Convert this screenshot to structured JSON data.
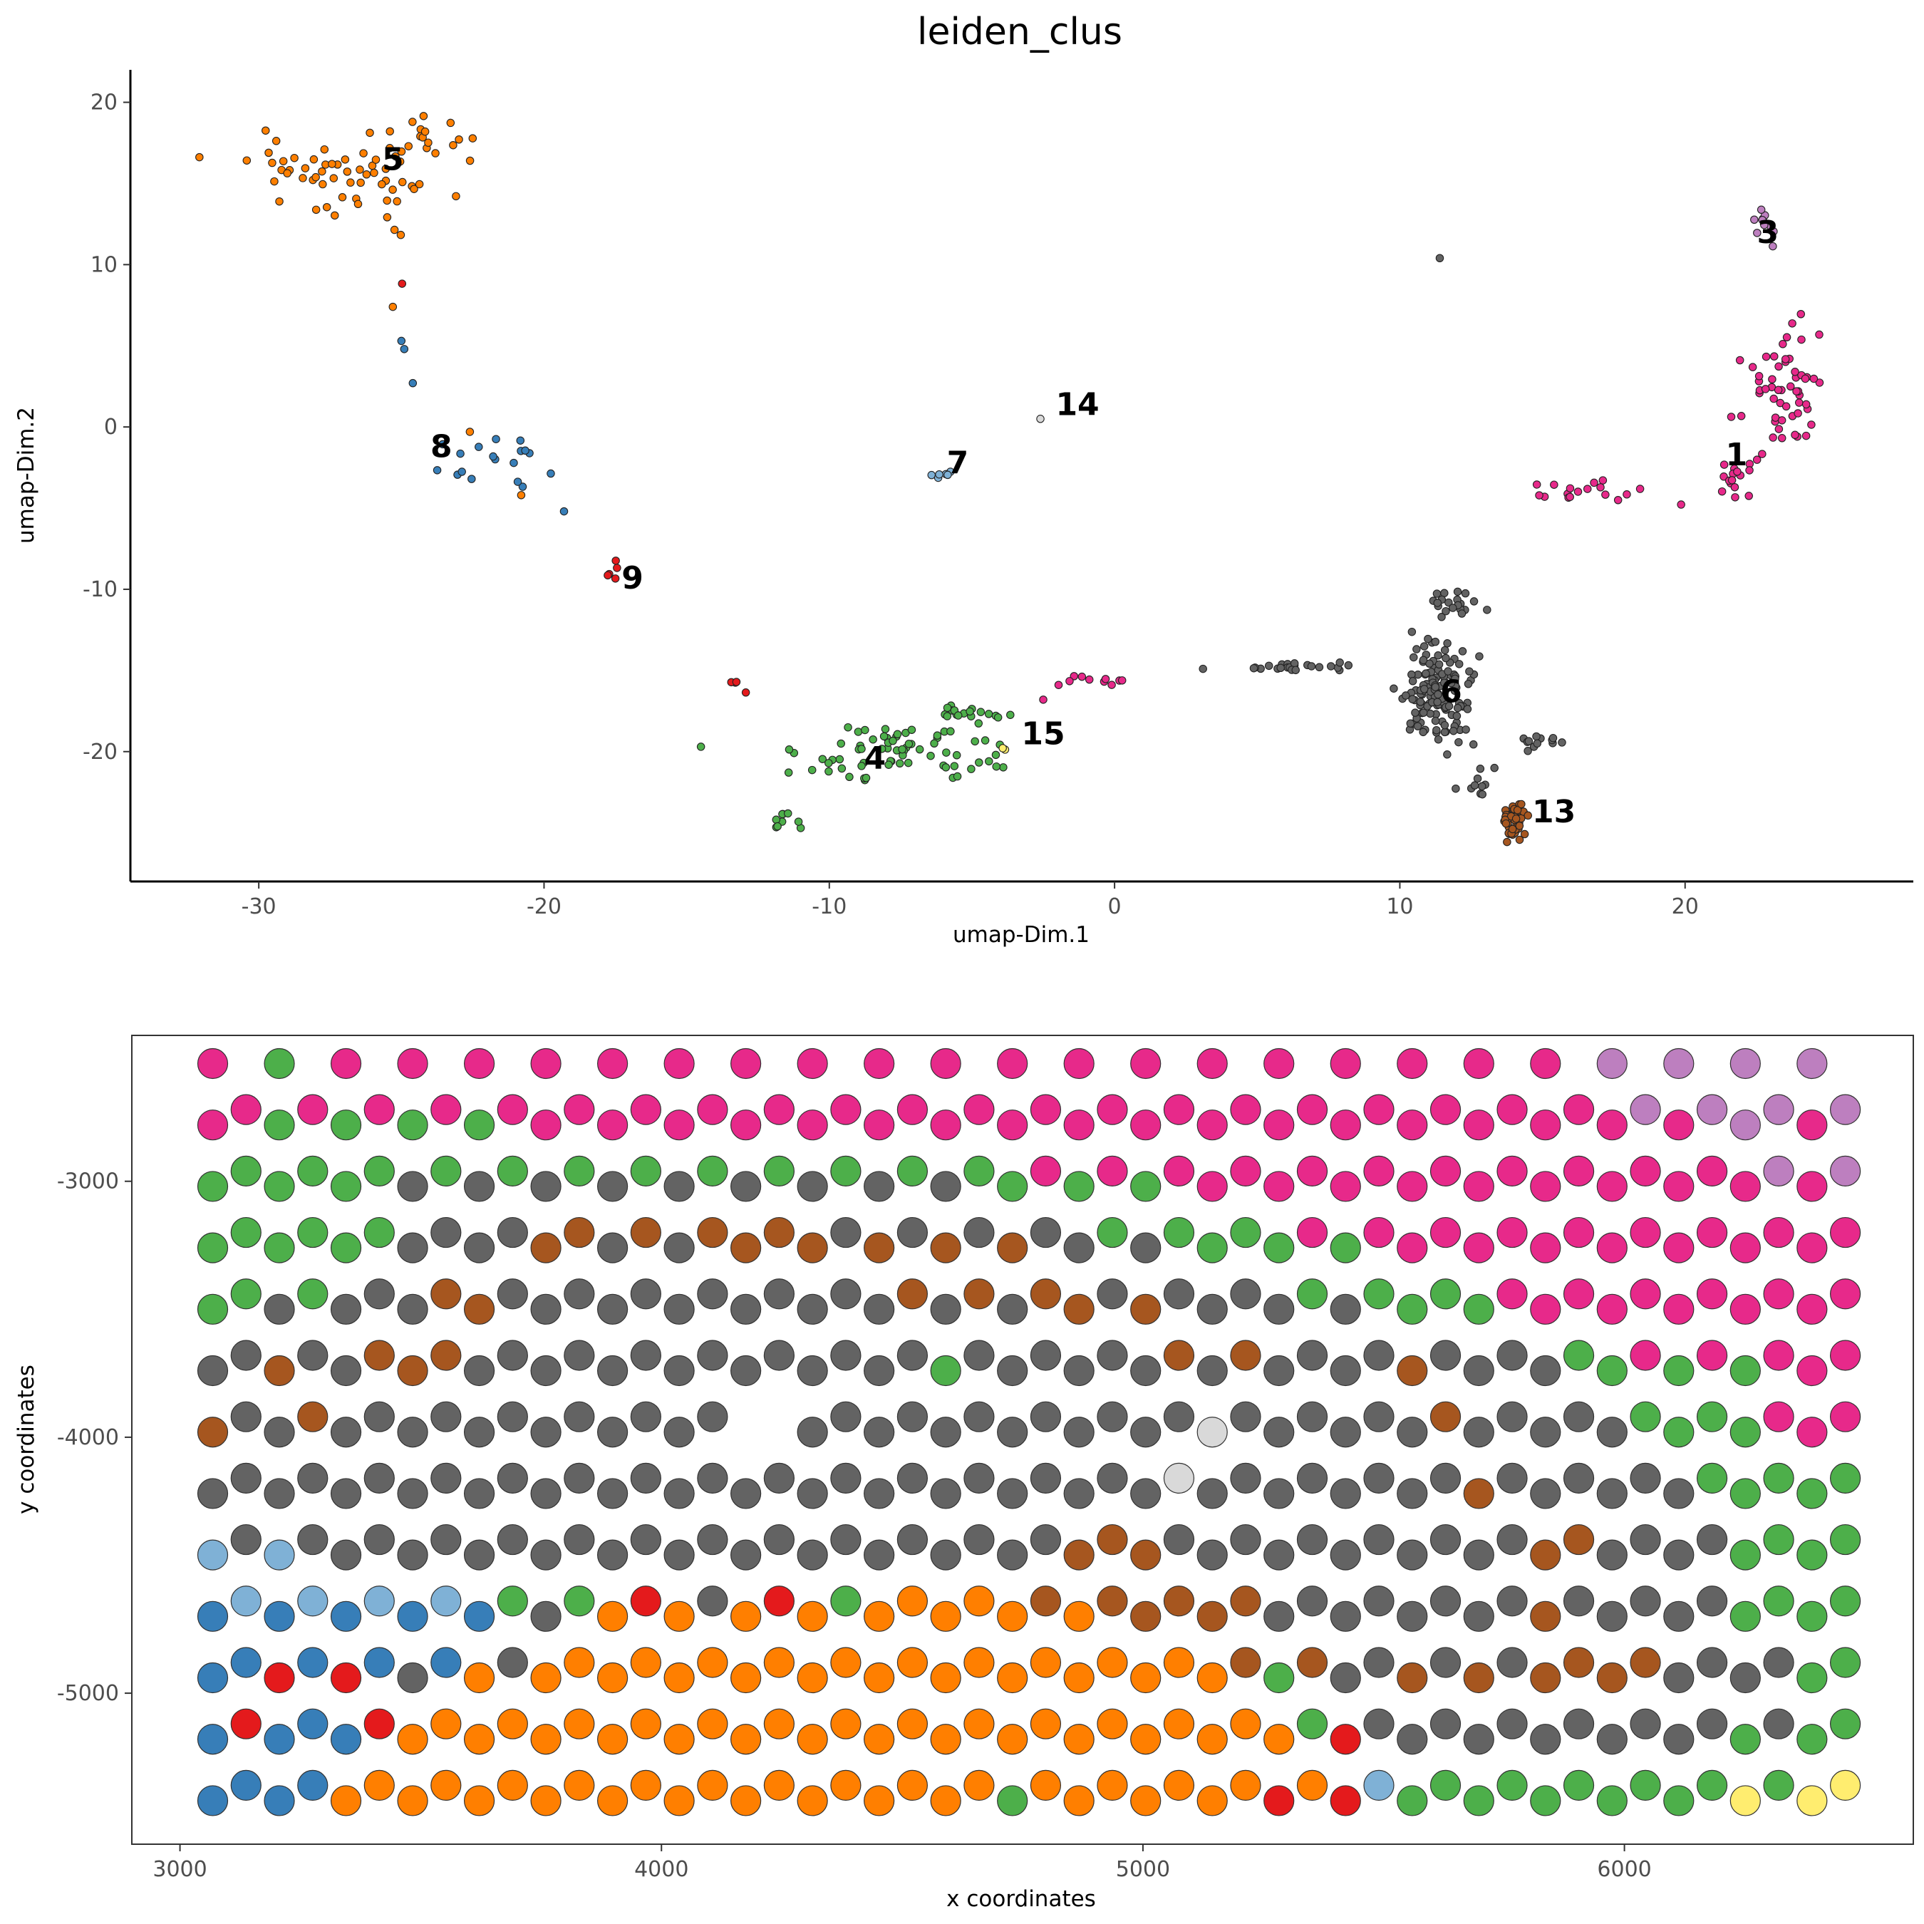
{
  "colors": {
    "1": "#e7298a",
    "3": "#bd7fbf",
    "4": "#4daf4a",
    "5": "#ff7f00",
    "6": "#636363",
    "7": "#7fb1d6",
    "8": "#377eb8",
    "9": "#e41a1c",
    "13": "#a6561f",
    "14": "#d9d9d9",
    "15": "#ffed6f"
  },
  "chart_data": [
    {
      "type": "scatter",
      "title": "leiden_clus",
      "xlabel": "umap-Dim.1",
      "ylabel": "umap-Dim.2",
      "xlim": [
        -34.5,
        28
      ],
      "ylim": [
        -28,
        22
      ],
      "xticks": [
        -30,
        -20,
        -10,
        0,
        10,
        20
      ],
      "yticks": [
        -20,
        -10,
        0,
        10,
        20
      ],
      "cluster_labels": [
        {
          "text": "5",
          "x": -25.3,
          "y": 16.5
        },
        {
          "text": "3",
          "x": 22.9,
          "y": 12.0
        },
        {
          "text": "14",
          "x": -1.3,
          "y": 1.4
        },
        {
          "text": "1",
          "x": 21.8,
          "y": -1.7
        },
        {
          "text": "8",
          "x": -23.6,
          "y": -1.2
        },
        {
          "text": "7",
          "x": -5.5,
          "y": -2.2
        },
        {
          "text": "9",
          "x": -16.9,
          "y": -9.3
        },
        {
          "text": "6",
          "x": 11.8,
          "y": -16.3
        },
        {
          "text": "15",
          "x": -2.5,
          "y": -18.9
        },
        {
          "text": "4",
          "x": -8.4,
          "y": -20.4
        },
        {
          "text": "13",
          "x": 15.4,
          "y": -23.7
        }
      ],
      "clusters": [
        {
          "name": "5",
          "center": [
            -27,
            15.5
          ],
          "spread": [
            3.2,
            2.0
          ],
          "n": 60
        },
        {
          "name": "5",
          "center": [
            -24,
            18.0
          ],
          "spread": [
            1.2,
            1.0
          ],
          "n": 14
        },
        {
          "name": "5",
          "center": [
            -25.3,
            11.5
          ],
          "spread": [
            0.3,
            0.6
          ],
          "n": 2
        },
        {
          "name": "3",
          "center": [
            22.6,
            12.5
          ],
          "spread": [
            0.6,
            0.9
          ],
          "n": 10
        },
        {
          "name": "1",
          "center": [
            23.5,
            2.5
          ],
          "spread": [
            1.2,
            3.0
          ],
          "n": 55
        },
        {
          "name": "1",
          "center": [
            17.5,
            -4.0
          ],
          "spread": [
            2.5,
            0.6
          ],
          "n": 18
        },
        {
          "name": "1",
          "center": [
            22.0,
            -3.5
          ],
          "spread": [
            0.8,
            1.0
          ],
          "n": 16
        },
        {
          "name": "1",
          "center": [
            -1.0,
            -15.6
          ],
          "spread": [
            1.0,
            0.3
          ],
          "n": 10
        },
        {
          "name": "6",
          "center": [
            11.3,
            -16.5
          ],
          "spread": [
            1.0,
            2.5
          ],
          "n": 140
        },
        {
          "name": "6",
          "center": [
            6.0,
            -14.8
          ],
          "spread": [
            2.0,
            0.3
          ],
          "n": 22
        },
        {
          "name": "6",
          "center": [
            12.0,
            -11.0
          ],
          "spread": [
            0.7,
            0.9
          ],
          "n": 20
        },
        {
          "name": "6",
          "center": [
            15.0,
            -19.5
          ],
          "spread": [
            0.7,
            0.4
          ],
          "n": 12
        },
        {
          "name": "6",
          "center": [
            12.8,
            -21.5
          ],
          "spread": [
            0.6,
            1.1
          ],
          "n": 10
        },
        {
          "name": "13",
          "center": [
            14.0,
            -24.3
          ],
          "spread": [
            0.4,
            0.9
          ],
          "n": 45
        },
        {
          "name": "4",
          "center": [
            -7.5,
            -20.0
          ],
          "spread": [
            2.6,
            1.6
          ],
          "n": 70
        },
        {
          "name": "4",
          "center": [
            -11.5,
            -24.3
          ],
          "spread": [
            0.6,
            0.6
          ],
          "n": 9
        },
        {
          "name": "4",
          "center": [
            -5.0,
            -17.7
          ],
          "spread": [
            1.0,
            0.5
          ],
          "n": 18
        },
        {
          "name": "7",
          "center": [
            -6.0,
            -2.9
          ],
          "spread": [
            0.4,
            0.3
          ],
          "n": 6
        },
        {
          "name": "15",
          "center": [
            -3.8,
            -19.8
          ],
          "spread": [
            0.1,
            0.1
          ],
          "n": 2
        },
        {
          "name": "14",
          "center": [
            -2.6,
            0.5
          ],
          "spread": [
            0.0,
            0.0
          ],
          "n": 1
        },
        {
          "name": "8",
          "center": [
            -21.5,
            -2.0
          ],
          "spread": [
            2.0,
            1.8
          ],
          "n": 18
        },
        {
          "name": "9",
          "center": [
            -17.6,
            -9.0
          ],
          "spread": [
            0.3,
            1.0
          ],
          "n": 5
        },
        {
          "name": "9",
          "center": [
            -13.2,
            -16.0
          ],
          "spread": [
            0.3,
            0.5
          ],
          "n": 4
        },
        {
          "name": "9",
          "center": [
            -25.0,
            8.8
          ],
          "spread": [
            0.1,
            0.1
          ],
          "n": 1
        }
      ],
      "points": [
        {
          "x": 11.4,
          "y": 10.4,
          "c": "6"
        },
        {
          "x": -25.3,
          "y": 7.4,
          "c": "5"
        },
        {
          "x": -20.8,
          "y": -4.2,
          "c": "5"
        },
        {
          "x": -22.6,
          "y": -0.3,
          "c": "5"
        },
        {
          "x": -25.0,
          "y": 5.3,
          "c": "8"
        },
        {
          "x": -24.9,
          "y": 4.8,
          "c": "8"
        },
        {
          "x": -24.6,
          "y": 2.7,
          "c": "8"
        },
        {
          "x": -19.3,
          "y": -5.2,
          "c": "8"
        },
        {
          "x": -14.5,
          "y": -19.7,
          "c": "4"
        },
        {
          "x": -2.5,
          "y": -16.8,
          "c": "1"
        },
        {
          "x": 3.1,
          "y": -14.9,
          "c": "6"
        }
      ]
    },
    {
      "type": "scatter",
      "title": "",
      "xlabel": "x coordinates",
      "ylabel": "y coordinates",
      "xlim": [
        2900,
        6600
      ],
      "ylim": [
        -5590,
        -2430
      ],
      "xticks": [
        3000,
        4000,
        5000,
        6000
      ],
      "yticks": [
        -3000,
        -4000,
        -5000
      ],
      "grid": {
        "x0": 3068,
        "dx": 69.2,
        "y0": -2540,
        "dy": 120,
        "cols": 25
      },
      "rows": [
        "1 4 1 1 1 1 1 1 1 1 1 1 1 1 1 1 1 1 1 1 1 3 3 3 3",
        "1 1 1 1 1 1 1 1 1 1 1 1 1 1 1 1 1 1 1 1 1 3 3 3 3",
        "1 4 4 4 4 1 1 1 1 1 1 1 1 1 1 1 1 1 1 1 1 1 1 3 1",
        "4 4 4 4 4 4 4 4 4 4 4 4 1 1 1 1 1 1 1 1 1 1 1 3 3",
        "4 4 4 6 6 6 6 6 6 6 6 6 4 4 4 1 1 1 1 1 1 1 1 1 1",
        "4 4 4 6 6 13 13 13 13 6 6 6 6 4 4 4 1 1 1 1 1 1 1 1 1",
        "4 4 4 6 6 13 6 6 13 13 13 13 13 6 6 4 4 4 1 1 1 1 1 1 1",
        "4 4 6 13 6 6 6 6 6 6 13 13 13 6 6 6 4 4 4 1 1 1 1 1 1",
        "4 6 6 6 13 6 6 6 6 6 6 6 6 13 13 6 6 6 4 4 1 1 1 1 1",
        "6 6 13 13 6 6 6 6 6 6 6 6 6 6 13 13 6 6 6 6 4 1 1 1 1",
        "6 13 6 13 6 6 6 6 6 6 6 4 6 6 6 6 6 6 13 6 6 4 4 4 1",
        "6 13 6 6 6 6 6 6 _ 6 6 6 6 6 6 6 6 6 13 6 6 4 4 1 1",
        "13 6 6 6 6 6 6 6 _ 6 6 6 6 6 6 14 6 6 6 6 6 6 4 4 1",
        "6 6 6 6 6 6 6 6 6 6 6 6 6 6 14 6 6 6 6 6 6 6 4 4 4",
        "6 6 6 6 6 6 6 6 6 6 6 6 6 6 6 6 6 6 6 13 6 6 6 4 4",
        "6 6 6 6 6 6 6 6 6 6 6 6 6 13 6 6 6 6 6 6 13 6 6 4 4",
        "7 7 6 6 6 6 6 6 6 6 6 6 6 13 13 6 6 6 6 6 13 6 6 4 4",
        "7 7 7 7 4 4 9 6 9 4 5 5 13 13 13 13 6 6 6 6 6 6 6 4 4",
        "8 8 8 8 8 6 5 5 5 5 5 5 5 5 13 13 6 6 6 6 13 6 6 4 4",
        "8 8 8 8 6 5 5 5 5 5 5 5 5 5 5 13 13 6 6 6 13 13 6 6 4",
        "8 9 9 6 5 5 5 5 5 5 5 5 5 5 5 5 4 6 13 13 13 13 6 6 4",
        "9 8 9 5 5 5 5 5 5 5 5 5 5 5 5 5 4 6 6 6 6 6 6 6 4",
        "8 8 8 5 5 5 5 5 5 5 5 5 5 5 5 5 5 9 6 6 6 6 6 4 4",
        "8 8 5 5 5 5 5 5 5 5 5 5 5 5 5 5 5 7 4 4 4 4 4 4 15",
        "8 8 5 5 5 5 5 5 5 5 5 5 4 5 5 5 9 9 4 4 4 4 4 15 15"
      ]
    }
  ]
}
